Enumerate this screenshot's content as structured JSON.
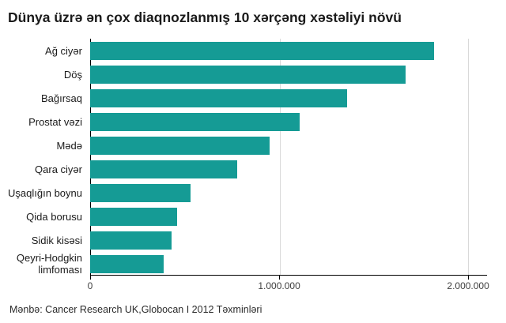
{
  "chart_data": {
    "type": "bar",
    "orientation": "horizontal",
    "title": "Dünya üzrə ən çox diaqnozlanmış 10 xərçəng xəstəliyi növü",
    "categories": [
      "Ağ ciyər",
      "Döş",
      "Bağırsaq",
      "Prostat vəzi",
      "Mədə",
      "Qara ciyər",
      "Uşaqlığın boynu",
      "Qida borusu",
      "Sidik kisəsi",
      "Qeyri-Hodgkin limfoması"
    ],
    "values": [
      1820000,
      1670000,
      1360000,
      1110000,
      950000,
      780000,
      530000,
      460000,
      430000,
      390000
    ],
    "xlabel": "",
    "ylabel": "",
    "xlim": [
      0,
      2100000
    ],
    "xticks": [
      {
        "value": 0,
        "label": "0"
      },
      {
        "value": 1000000,
        "label": "1.000.000"
      },
      {
        "value": 2000000,
        "label": "2.000.000"
      }
    ],
    "grid": "vertical-light",
    "legend": "none",
    "bar_color": "#159B95",
    "source": "Mənbə: Cancer Research UK,Globocan I 2012 Təxminləri"
  }
}
